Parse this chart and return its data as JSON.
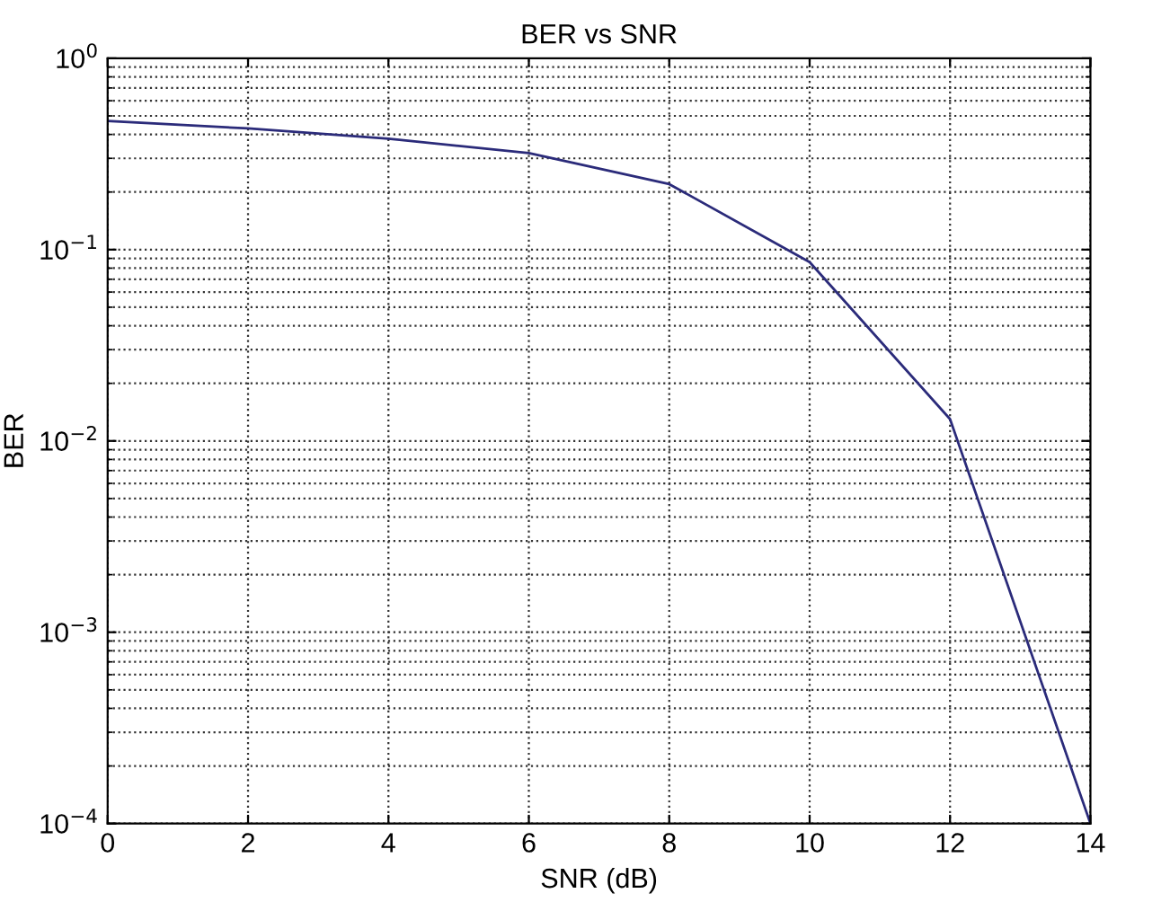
{
  "chart_data": {
    "type": "line",
    "title": "BER vs SNR",
    "xlabel": "SNR (dB)",
    "ylabel": "BER",
    "x": [
      0,
      2,
      4,
      6,
      8,
      10,
      12,
      14
    ],
    "series": [
      {
        "color": "#2b2b7a",
        "values": [
          0.47,
          0.43,
          0.38,
          0.32,
          0.22,
          0.086,
          0.013,
          0.0001
        ]
      }
    ],
    "log": "y",
    "xlim": [
      0,
      14
    ],
    "xticks": [
      0,
      2,
      4,
      6,
      8,
      10,
      12,
      14
    ],
    "ylim": [
      0.0001,
      1
    ],
    "yticks": [
      {
        "value": 0.0001,
        "label": "10$^{−4}$"
      },
      {
        "value": 0.001,
        "label": "10$^{−3}$"
      },
      {
        "value": 0.01,
        "label": "10$^{−2}$"
      },
      {
        "value": 0.1,
        "label": "10$^{−1}$"
      },
      {
        "value": 1,
        "label": "10$^{0}$"
      }
    ],
    "grid": true,
    "line_style": "solid",
    "marker": "none"
  }
}
